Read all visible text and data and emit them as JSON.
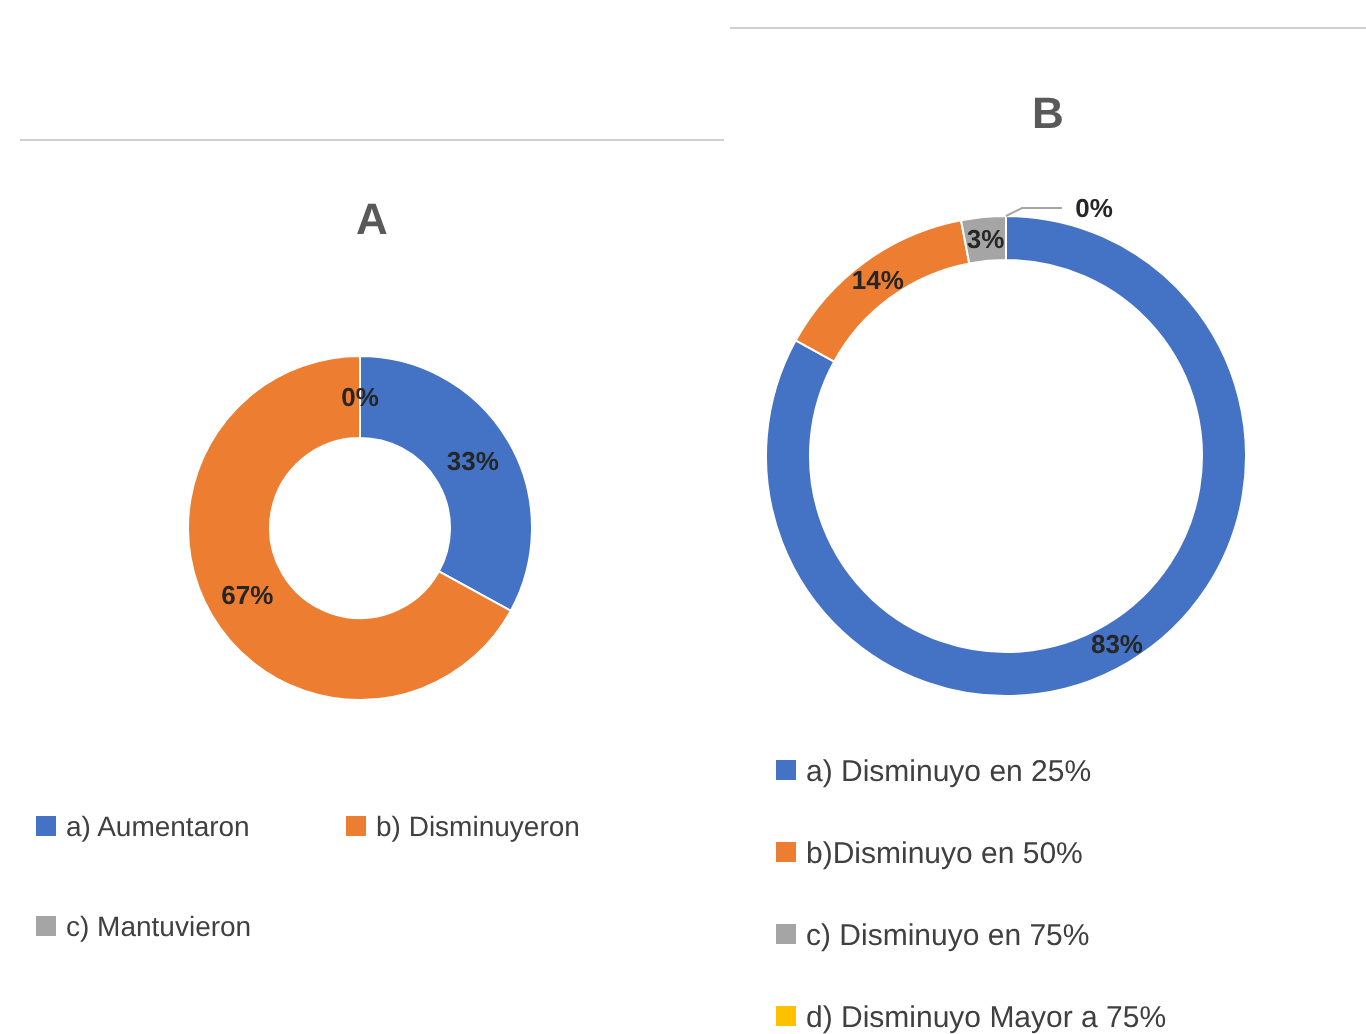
{
  "chart_data": [
    {
      "type": "donut",
      "title": "A",
      "categories": [
        "a) Aumentaron",
        "b) Disminuyeron",
        "c) Mantuvieron"
      ],
      "values": [
        33,
        67,
        0
      ],
      "colors": [
        "#4472c4",
        "#ed7d31",
        "#a5a5a5"
      ],
      "value_labels": [
        "33%",
        "67%",
        "0%"
      ],
      "legend": "bottom"
    },
    {
      "type": "donut",
      "title": "B",
      "categories": [
        "a) Disminuyo en 25%",
        "b)Disminuyo en 50%",
        "c) Disminuyo en 75%",
        "d) Disminuyo Mayor a 75%"
      ],
      "values": [
        83,
        14,
        3,
        0
      ],
      "colors": [
        "#4472c4",
        "#ed7d31",
        "#a5a5a5",
        "#ffc000"
      ],
      "value_labels": [
        "83%",
        "14%",
        "3%",
        "0%"
      ],
      "legend": "bottom"
    }
  ]
}
